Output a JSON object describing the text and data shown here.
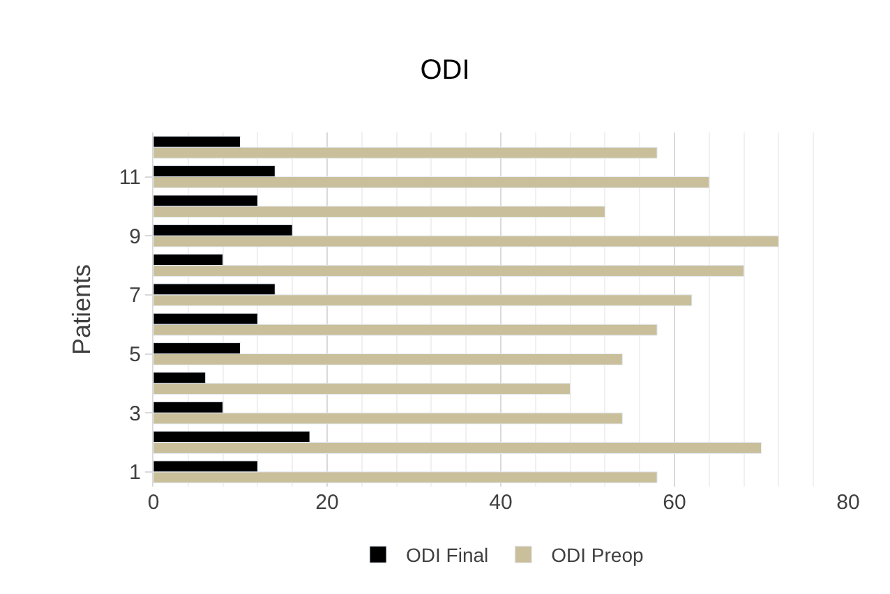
{
  "chart_data": {
    "type": "bar",
    "orientation": "horizontal",
    "title": "ODI",
    "ylabel": "Patients",
    "categories": [
      null,
      "11",
      null,
      "9",
      null,
      "7",
      null,
      "5",
      null,
      "3",
      null,
      "1"
    ],
    "series": [
      {
        "name": "ODI Final",
        "color": "#000000",
        "values": [
          10,
          14,
          12,
          16,
          8,
          14,
          12,
          10,
          6,
          8,
          18,
          12
        ]
      },
      {
        "name": "ODI Preop",
        "color": "#c9bf9a",
        "values": [
          58,
          64,
          52,
          72,
          68,
          62,
          58,
          54,
          48,
          54,
          70,
          58
        ]
      }
    ],
    "xlim": [
      0,
      80
    ],
    "xticks": [
      0,
      {
        "value": 4,
        "label": null
      },
      {
        "value": 8,
        "label": null
      },
      {
        "value": 12,
        "label": null
      },
      {
        "value": 16,
        "label": null
      },
      20,
      {
        "value": 24,
        "label": null
      },
      {
        "value": 28,
        "label": null
      },
      {
        "value": 32,
        "label": null
      },
      {
        "value": 36,
        "label": null
      },
      40,
      {
        "value": 44,
        "label": null
      },
      {
        "value": 48,
        "label": null
      },
      {
        "value": 52,
        "label": null
      },
      {
        "value": 56,
        "label": null
      },
      60,
      {
        "value": 64,
        "label": null
      },
      {
        "value": 68,
        "label": null
      },
      {
        "value": 72,
        "label": null
      },
      {
        "value": 76,
        "label": null
      },
      80
    ],
    "grid": "x",
    "legend": "bottom"
  }
}
